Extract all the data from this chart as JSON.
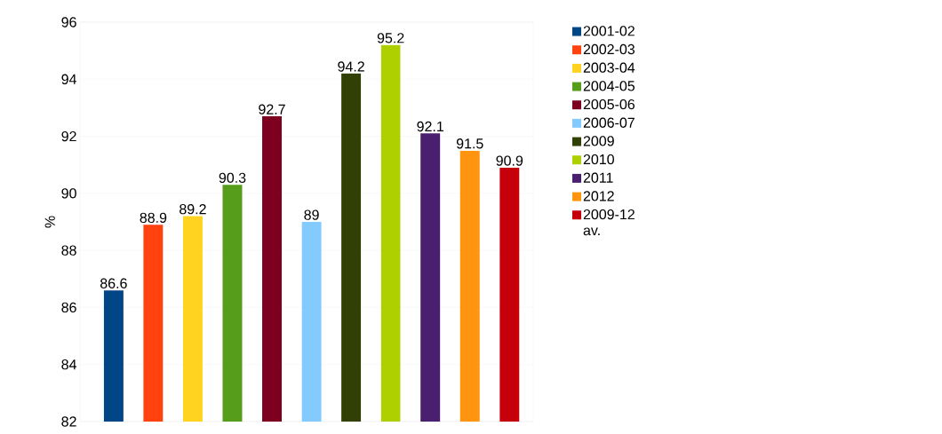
{
  "chart_data": {
    "type": "bar",
    "ylabel": "%",
    "categories": [
      null,
      null,
      null,
      null,
      null,
      null,
      null,
      null,
      null,
      null,
      null
    ],
    "series": [
      {
        "name": "2001-02",
        "color": "#004586",
        "values": [
          86.6,
          null,
          null,
          null,
          null,
          null,
          null,
          null,
          null,
          null,
          null
        ]
      },
      {
        "name": "2002-03",
        "color": "#ff420e",
        "values": [
          null,
          88.9,
          null,
          null,
          null,
          null,
          null,
          null,
          null,
          null,
          null
        ]
      },
      {
        "name": "2003-04",
        "color": "#ffd320",
        "values": [
          null,
          null,
          89.2,
          null,
          null,
          null,
          null,
          null,
          null,
          null,
          null
        ]
      },
      {
        "name": "2004-05",
        "color": "#579d1c",
        "values": [
          null,
          null,
          null,
          90.3,
          null,
          null,
          null,
          null,
          null,
          null,
          null
        ]
      },
      {
        "name": "2005-06",
        "color": "#7e0021",
        "values": [
          null,
          null,
          null,
          null,
          92.7,
          null,
          null,
          null,
          null,
          null,
          null
        ]
      },
      {
        "name": "2006-07",
        "color": "#83caff",
        "values": [
          null,
          null,
          null,
          null,
          null,
          89,
          null,
          null,
          null,
          null,
          null
        ]
      },
      {
        "name": "2009",
        "color": "#314004",
        "values": [
          null,
          null,
          null,
          null,
          null,
          null,
          94.2,
          null,
          null,
          null,
          null
        ]
      },
      {
        "name": "2010",
        "color": "#aecf00",
        "values": [
          null,
          null,
          null,
          null,
          null,
          null,
          null,
          95.2,
          null,
          null,
          null
        ]
      },
      {
        "name": "2011",
        "color": "#4b1f6f",
        "values": [
          null,
          null,
          null,
          null,
          null,
          null,
          null,
          null,
          92.1,
          null,
          null
        ]
      },
      {
        "name": "2012",
        "color": "#ff950e",
        "values": [
          null,
          null,
          null,
          null,
          null,
          null,
          null,
          null,
          null,
          91.5,
          null
        ]
      },
      {
        "name": "2009-12 av.",
        "color": "#c5000b",
        "values": [
          null,
          null,
          null,
          null,
          null,
          null,
          null,
          null,
          null,
          null,
          90.9
        ]
      }
    ],
    "ylim": [
      82,
      96
    ],
    "yticks": [
      82,
      84,
      86,
      88,
      90,
      92,
      94,
      96
    ],
    "grid": "y",
    "legend": "right",
    "data_labels": true
  }
}
